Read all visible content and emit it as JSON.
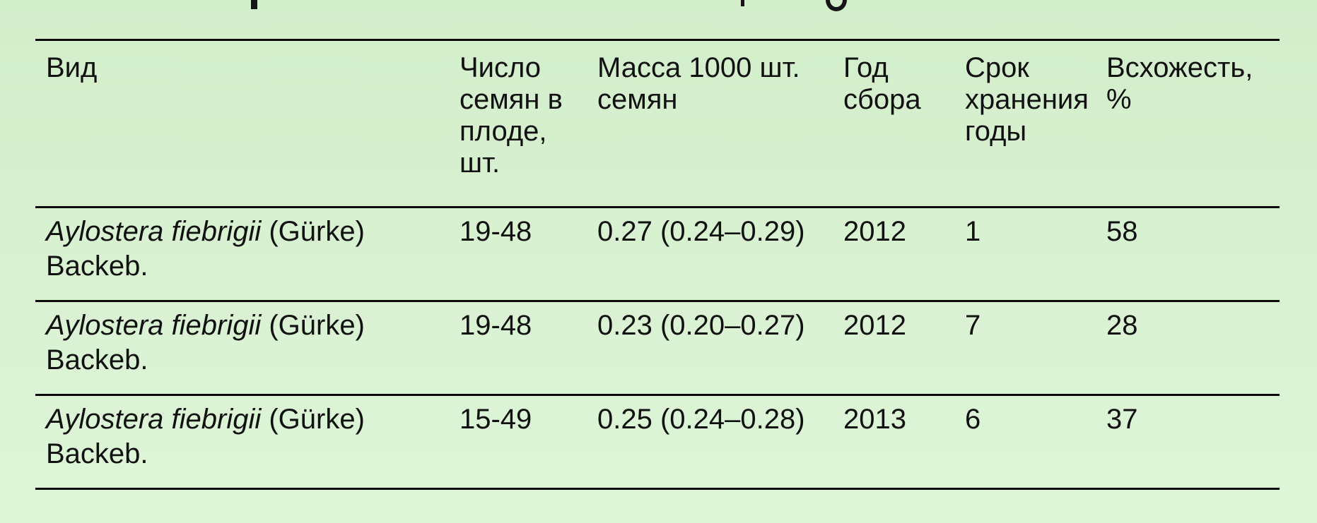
{
  "page": {
    "background_top": "#d3eecb",
    "background_bottom": "#def6d8",
    "text_color": "#111111",
    "rule_color": "#0b0b0b",
    "note": "title line clipped at top edge; only letter fragments visible"
  },
  "table": {
    "columns": [
      {
        "key": "species",
        "label": "Вид"
      },
      {
        "key": "seeds_per_fruit",
        "label": "Число семян в плоде, шт."
      },
      {
        "key": "mass_1000",
        "label": "Масса 1000 шт. семян"
      },
      {
        "key": "year_collected",
        "label": "Год сбора"
      },
      {
        "key": "storage_years",
        "label": "Срок хранения годы"
      },
      {
        "key": "germination_pct",
        "label": "Всхожесть, %"
      }
    ],
    "rows": [
      {
        "species_italic": "Aylostera fiebrigii",
        "species_rest": " (Gürke) Backeb.",
        "seeds_per_fruit": "19-48",
        "mass_1000": "0.27 (0.24–0.29)",
        "year_collected": "2012",
        "storage_years": "1",
        "germination_pct": "58"
      },
      {
        "species_italic": "Aylostera fiebrigii",
        "species_rest": " (Gürke) Backeb.",
        "seeds_per_fruit": "19-48",
        "mass_1000": "0.23 (0.20–0.27)",
        "year_collected": "2012",
        "storage_years": "7",
        "germination_pct": "28"
      },
      {
        "species_italic": "Aylostera fiebrigii",
        "species_rest": " (Gürke) Backeb.",
        "seeds_per_fruit": "15-49",
        "mass_1000": "0.25 (0.24–0.28)",
        "year_collected": "2013",
        "storage_years": "6",
        "germination_pct": "37"
      }
    ]
  }
}
